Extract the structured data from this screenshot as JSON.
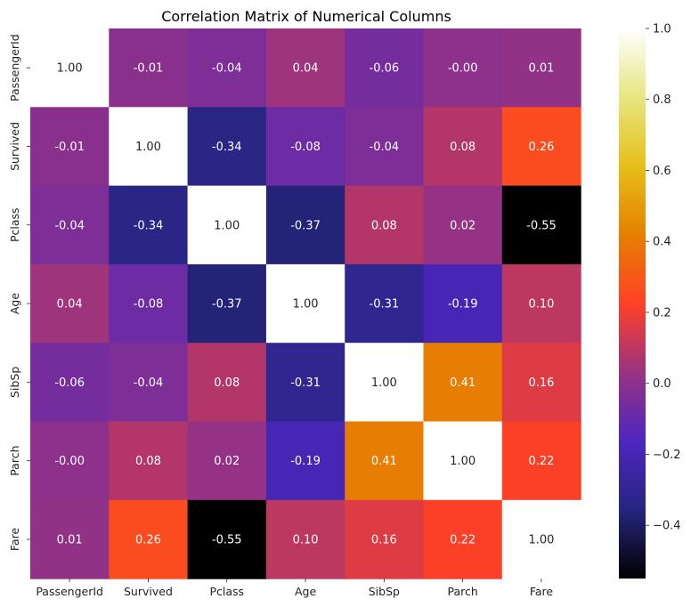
{
  "chart_data": {
    "type": "heatmap",
    "title": "Correlation Matrix of Numerical Columns",
    "xlabel": "",
    "ylabel": "",
    "x_categories": [
      "PassengerId",
      "Survived",
      "Pclass",
      "Age",
      "SibSp",
      "Parch",
      "Fare"
    ],
    "y_categories": [
      "PassengerId",
      "Survived",
      "Pclass",
      "Age",
      "SibSp",
      "Parch",
      "Fare"
    ],
    "values": [
      [
        1.0,
        -0.01,
        -0.04,
        0.04,
        -0.06,
        -0.0,
        0.01
      ],
      [
        -0.01,
        1.0,
        -0.34,
        -0.08,
        -0.04,
        0.08,
        0.26
      ],
      [
        -0.04,
        -0.34,
        1.0,
        -0.37,
        0.08,
        0.02,
        -0.55
      ],
      [
        0.04,
        -0.08,
        -0.37,
        1.0,
        -0.31,
        -0.19,
        0.1
      ],
      [
        -0.06,
        -0.04,
        0.08,
        -0.31,
        1.0,
        0.41,
        0.16
      ],
      [
        -0.0,
        0.08,
        0.02,
        -0.19,
        0.41,
        1.0,
        0.22
      ],
      [
        0.01,
        0.26,
        -0.55,
        0.1,
        0.16,
        0.22,
        1.0
      ]
    ],
    "value_labels": [
      [
        "1.00",
        "-0.01",
        "-0.04",
        "0.04",
        "-0.06",
        "-0.00",
        "0.01"
      ],
      [
        "-0.01",
        "1.00",
        "-0.34",
        "-0.08",
        "-0.04",
        "0.08",
        "0.26"
      ],
      [
        "-0.04",
        "-0.34",
        "1.00",
        "-0.37",
        "0.08",
        "0.02",
        "-0.55"
      ],
      [
        "0.04",
        "-0.08",
        "-0.37",
        "1.00",
        "-0.31",
        "-0.19",
        "0.10"
      ],
      [
        "-0.06",
        "-0.04",
        "0.08",
        "-0.31",
        "1.00",
        "0.41",
        "0.16"
      ],
      [
        "-0.00",
        "0.08",
        "0.02",
        "-0.19",
        "0.41",
        "1.00",
        "0.22"
      ],
      [
        "0.01",
        "0.26",
        "-0.55",
        "0.10",
        "0.16",
        "0.22",
        "1.00"
      ]
    ],
    "colormap": "CMRmap",
    "colorbar": {
      "vmin": -0.55,
      "vmax": 1.0,
      "ticks": [
        1.0,
        0.8,
        0.6,
        0.4,
        0.2,
        0.0,
        -0.2,
        -0.4
      ],
      "tick_labels": [
        "1.0",
        "0.8",
        "0.6",
        "0.4",
        "0.2",
        "0.0",
        "−0.2",
        "−0.4"
      ]
    },
    "grid": false,
    "legend": "colorbar-right"
  }
}
